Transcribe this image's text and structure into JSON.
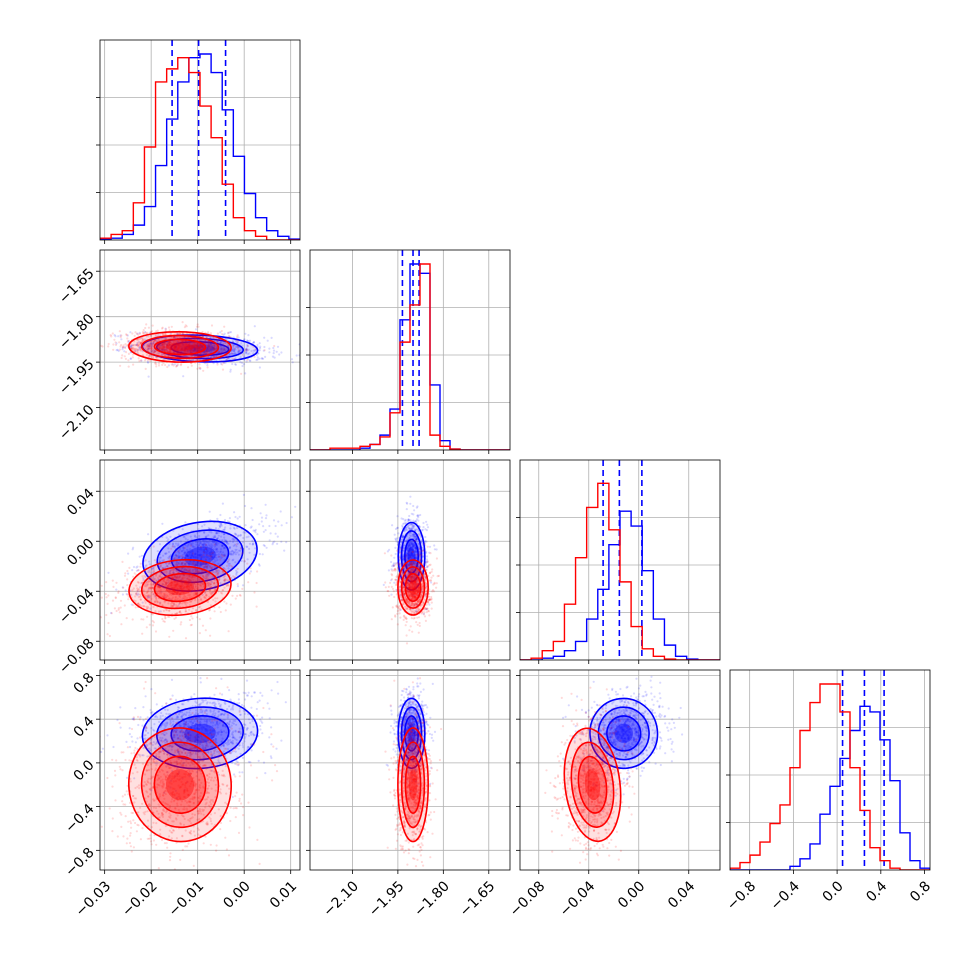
{
  "colors": {
    "posterior_a": "#0000ff",
    "posterior_b": "#ff0000",
    "grid": "#b0b0b0"
  },
  "chart_data": {
    "type": "corner",
    "grid": true,
    "n_params": 4,
    "params": [
      {
        "range": [
          -0.031,
          0.012
        ],
        "ticks": [
          -0.03,
          -0.02,
          -0.01,
          0.0,
          0.01
        ],
        "tick_labels": [
          "−0.03",
          "−0.02",
          "−0.01",
          "0.00",
          "0.01"
        ]
      },
      {
        "range": [
          -2.24,
          -1.58
        ],
        "ticks": [
          -2.1,
          -1.95,
          -1.8,
          -1.65
        ],
        "tick_labels": [
          "−2.10",
          "−1.95",
          "−1.80",
          "−1.65"
        ]
      },
      {
        "range": [
          -0.095,
          0.065
        ],
        "ticks": [
          -0.08,
          -0.04,
          0.0,
          0.04
        ],
        "tick_labels": [
          "−0.08",
          "−0.04",
          "0.00",
          "0.04"
        ]
      },
      {
        "range": [
          -0.98,
          0.85
        ],
        "ticks": [
          -0.8,
          -0.4,
          0.0,
          0.4,
          0.8
        ],
        "tick_labels": [
          "−0.8",
          "−0.4",
          "0.0",
          "0.4",
          "0.8"
        ]
      }
    ],
    "series": [
      {
        "color": "#0000ff",
        "quantiles": [
          [
            -0.0155,
            -0.0098,
            -0.004
          ],
          [
            -1.935,
            -1.9,
            -1.88
          ],
          [
            -0.0285,
            -0.0155,
            0.0025
          ],
          [
            0.05,
            0.25,
            0.43
          ]
        ],
        "hist": [
          [
            0.005,
            0.01,
            0.03,
            0.08,
            0.18,
            0.4,
            0.65,
            0.85,
            0.98,
            1.0,
            0.9,
            0.7,
            0.45,
            0.25,
            0.12,
            0.05,
            0.02,
            0.005
          ],
          [
            0.0,
            0.0,
            0.0,
            0.0,
            0.0,
            0.01,
            0.03,
            0.08,
            0.22,
            0.7,
            1.0,
            0.95,
            0.35,
            0.05,
            0.005,
            0.0,
            0.0,
            0.0,
            0.0,
            0.0
          ],
          [
            0.0,
            0.0,
            0.01,
            0.02,
            0.05,
            0.1,
            0.22,
            0.38,
            0.62,
            0.8,
            0.72,
            0.48,
            0.22,
            0.08,
            0.02,
            0.005,
            0.0,
            0.0
          ],
          [
            0.0,
            0.0,
            0.0,
            0.0,
            0.0,
            0.0,
            0.02,
            0.06,
            0.14,
            0.3,
            0.45,
            0.6,
            0.75,
            0.88,
            0.85,
            0.7,
            0.48,
            0.2,
            0.05,
            0.01
          ]
        ],
        "mean": [
          -0.0095,
          -1.905,
          -0.012,
          0.27
        ],
        "sd": [
          0.0062,
          0.022,
          0.0135,
          0.16
        ],
        "corr": [
          [
            1,
            0,
            0,
            0
          ],
          [
            -0.25,
            1,
            0,
            0
          ],
          [
            0.55,
            0,
            1,
            0
          ],
          [
            0.2,
            0,
            0.2,
            1
          ]
        ]
      },
      {
        "color": "#ff0000",
        "hist": [
          [
            0.01,
            0.03,
            0.05,
            0.2,
            0.5,
            0.85,
            0.92,
            0.98,
            0.9,
            0.72,
            0.55,
            0.3,
            0.12,
            0.05,
            0.02,
            0.0,
            0.0,
            0.0
          ],
          [
            0.0,
            0.0,
            0.01,
            0.01,
            0.01,
            0.02,
            0.03,
            0.07,
            0.2,
            0.58,
            0.78,
            1.0,
            0.08,
            0.02,
            0.005,
            0.0,
            0.0,
            0.0,
            0.0,
            0.0
          ],
          [
            0.0,
            0.01,
            0.05,
            0.1,
            0.3,
            0.55,
            0.82,
            0.95,
            0.7,
            0.42,
            0.18,
            0.06,
            0.02,
            0.005,
            0.0,
            0.0,
            0.0,
            0.0
          ],
          [
            0.01,
            0.04,
            0.08,
            0.15,
            0.25,
            0.35,
            0.55,
            0.75,
            0.9,
            1.0,
            1.0,
            0.85,
            0.55,
            0.32,
            0.12,
            0.05,
            0.01,
            0.0,
            0.0,
            0.0
          ]
        ],
        "mean": [
          -0.0138,
          -1.9,
          -0.037,
          -0.2
        ],
        "sd": [
          0.0055,
          0.025,
          0.011,
          0.26
        ],
        "corr": [
          [
            1,
            0,
            0,
            0
          ],
          [
            -0.1,
            1,
            0,
            0
          ],
          [
            0.3,
            0,
            1,
            0
          ],
          [
            0.15,
            0,
            0.1,
            1
          ]
        ]
      }
    ]
  }
}
